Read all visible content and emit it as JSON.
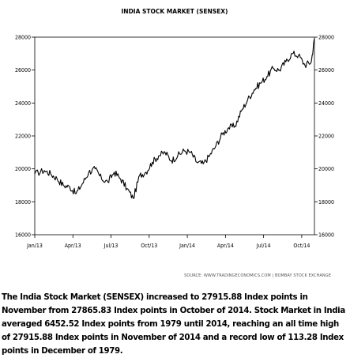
{
  "chart_data": {
    "type": "line",
    "title": "INDIA STOCK MARKET (SENSEX)",
    "source": "SOURCE: WWW.TRADINGECONOMICS.COM  |  BOMBAY STOCK EXCHANGE",
    "x_start": "Jan/13",
    "x_end": "Nov/14",
    "x_tick_labels": [
      "Jan/13",
      "Apr/13",
      "Jul/13",
      "Oct/13",
      "Jan/14",
      "Apr/14",
      "Jul/14",
      "Oct/14"
    ],
    "ylim": [
      16000,
      28000
    ],
    "y_ticks": [
      16000,
      18000,
      20000,
      22000,
      24000,
      26000,
      28000
    ],
    "y_tick_labels": [
      "16000",
      "18000",
      "20000",
      "22000",
      "24000",
      "26000",
      "28000"
    ],
    "grid": false,
    "legend": "none",
    "line_color": "#000000",
    "series": [
      {
        "x": [
          "Jan/13",
          "Jan/13",
          "Feb/13",
          "Feb/13",
          "Mar/13",
          "Mar/13",
          "Apr/13",
          "Apr/13",
          "May/13",
          "May/13",
          "Jun/13",
          "Jun/13",
          "Jul/13",
          "Jul/13",
          "Aug/13",
          "Aug/13",
          "Sep/13",
          "Sep/13",
          "Oct/13",
          "Oct/13",
          "Nov/13",
          "Nov/13",
          "Dec/13",
          "Dec/13",
          "Jan/14",
          "Jan/14",
          "Feb/14",
          "Feb/14",
          "Mar/14",
          "Mar/14",
          "Apr/14",
          "Apr/14",
          "May/14",
          "May/14",
          "Jun/14",
          "Jun/14",
          "Jul/14",
          "Jul/14",
          "Aug/14",
          "Aug/14",
          "Sep/14",
          "Sep/14",
          "Oct/14",
          "Oct/14",
          "Nov/14"
        ],
        "values": [
          19700,
          19900,
          19700,
          19400,
          19000,
          18900,
          18500,
          19100,
          19800,
          20000,
          19400,
          19200,
          19800,
          19400,
          18800,
          18200,
          19600,
          19800,
          20400,
          20800,
          21000,
          20500,
          20800,
          21100,
          21000,
          20400,
          20300,
          20800,
          21400,
          22100,
          22500,
          22600,
          23500,
          24200,
          24800,
          25200,
          25600,
          26100,
          26000,
          26500,
          27000,
          26900,
          26300,
          26500,
          27916
        ]
      }
    ]
  },
  "caption": {
    "text": "The India Stock Market (SENSEX) increased to 27915.88 Index points in November from 27865.83 Index points in October of 2014. Stock Market in India averaged 6452.52 Index points from 1979 until 2014, reaching an all time high of 27915.88 Index points in November of 2014 and a record low of 113.28 Index points in December of 1979."
  }
}
